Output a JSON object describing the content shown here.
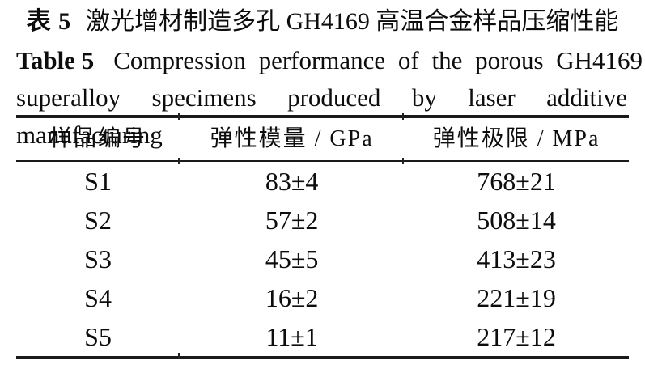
{
  "caption": {
    "zh_label": "表 5",
    "zh_title": "激光增材制造多孔 GH4169 高温合金样品压缩性能",
    "en_label": "Table 5",
    "en_line1": "Compression performance of the porous GH4169",
    "en_line2": "superalloy specimens produced by laser additive manufacturing"
  },
  "table": {
    "columns": [
      "样品编号",
      "弹性模量 / GPa",
      "弹性极限 / MPa"
    ],
    "rows": [
      [
        "S1",
        "83±4",
        "768±21"
      ],
      [
        "S2",
        "57±2",
        "508±14"
      ],
      [
        "S3",
        "45±5",
        "413±23"
      ],
      [
        "S4",
        "16±2",
        "221±19"
      ],
      [
        "S5",
        "11±1",
        "217±12"
      ]
    ]
  },
  "chart_data": {
    "type": "table",
    "title": "表 5 激光增材制造多孔 GH4169 高温合金样品压缩性能 / Table 5 Compression performance of the porous GH4169 superalloy specimens produced by laser additive manufacturing",
    "columns": [
      "样品编号",
      "弹性模量 / GPa",
      "弹性极限 / MPa"
    ],
    "rows": [
      [
        "S1",
        "83±4",
        "768±21"
      ],
      [
        "S2",
        "57±2",
        "508±14"
      ],
      [
        "S3",
        "45±5",
        "413±23"
      ],
      [
        "S4",
        "16±2",
        "221±19"
      ],
      [
        "S5",
        "11±1",
        "217±12"
      ]
    ]
  },
  "colors": {
    "text": "#0d0d0d",
    "rule": "#1a1a1a",
    "background": "#ffffff"
  }
}
